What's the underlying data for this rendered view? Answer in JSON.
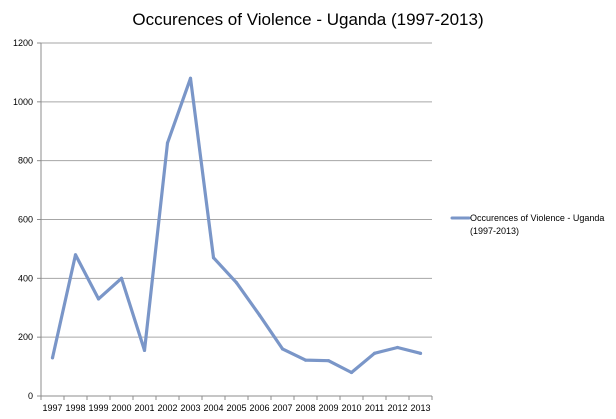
{
  "chart_data": {
    "type": "line",
    "title": "Occurences of Violence - Uganda (1997-2013)",
    "xlabel": "",
    "ylabel": "",
    "categories": [
      "1997",
      "1998",
      "1999",
      "2000",
      "2001",
      "2002",
      "2003",
      "2004",
      "2005",
      "2006",
      "2007",
      "2008",
      "2009",
      "2010",
      "2011",
      "2012",
      "2013"
    ],
    "series": [
      {
        "name": "Occurences of Violence - Uganda (1997-2013)",
        "values": [
          130,
          480,
          330,
          400,
          155,
          860,
          1080,
          470,
          385,
          275,
          160,
          122,
          120,
          80,
          145,
          165,
          145
        ],
        "color": "#7a96c8"
      }
    ],
    "ylim": [
      0,
      1200
    ],
    "yticks": [
      0,
      200,
      400,
      600,
      800,
      1000,
      1200
    ],
    "grid": true,
    "legend": "right"
  },
  "legend": {
    "line1": "Occurences of Violence - Uganda",
    "line2": "(1997-2013)"
  },
  "colors": {
    "series": "#7a96c8",
    "grid": "#a6a6a6",
    "axis": "#8c8c8c"
  }
}
